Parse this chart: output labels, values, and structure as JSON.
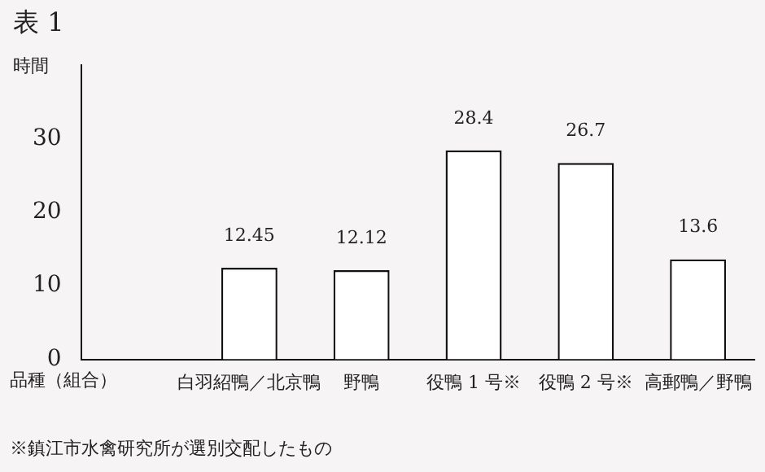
{
  "chart_data": {
    "type": "bar",
    "title": "表 1",
    "ylabel": "時間",
    "xlabel": "品種（組合）",
    "categories": [
      null,
      "白羽紹鴨／北京鴨",
      "野鴨",
      "役鴨 1 号※",
      "役鴨 2 号※",
      "高郵鴨／野鴨"
    ],
    "values": [
      null,
      12.45,
      12.12,
      28.4,
      26.7,
      13.6
    ],
    "color": "#ffffff",
    "ylim": [
      0,
      40
    ],
    "yticks": [
      0,
      10,
      20,
      30
    ],
    "data_labels": true,
    "grid": false,
    "legend": false,
    "annotations": [
      "※鎮江市水禽研究所が選別交配したもの"
    ]
  }
}
